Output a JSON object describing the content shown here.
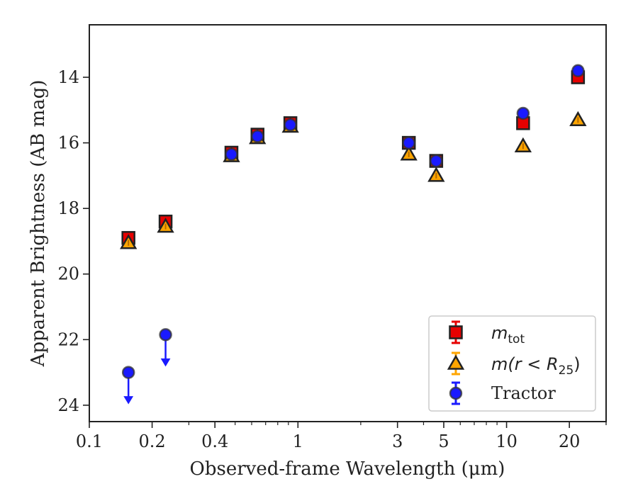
{
  "chart_data": {
    "type": "scatter",
    "xlabel": "Observed-frame Wavelength (μm)",
    "ylabel": "Apparent Brightness (AB mag)",
    "xscale": "log",
    "xlim": [
      0.1,
      30
    ],
    "ylim": [
      24.5,
      12.4
    ],
    "y_inverted": true,
    "grid": false,
    "legend_position": "lower-right",
    "xticks": [
      0.1,
      0.2,
      0.4,
      1,
      3,
      5,
      10,
      20
    ],
    "xtick_labels": [
      "0.1",
      "0.2",
      "0.4",
      "1",
      "3",
      "5",
      "10",
      "20"
    ],
    "yticks": [
      14,
      16,
      18,
      20,
      22,
      24
    ],
    "ytick_labels": [
      "14",
      "16",
      "18",
      "20",
      "22",
      "24"
    ],
    "series": [
      {
        "name": "m_tot",
        "marker": "square",
        "color": "#e60000",
        "points": [
          {
            "x": 0.154,
            "y": 18.9
          },
          {
            "x": 0.232,
            "y": 18.4
          },
          {
            "x": 0.48,
            "y": 16.3
          },
          {
            "x": 0.64,
            "y": 15.75
          },
          {
            "x": 0.92,
            "y": 15.4
          },
          {
            "x": 3.4,
            "y": 16.0
          },
          {
            "x": 4.6,
            "y": 16.55
          },
          {
            "x": 12.0,
            "y": 15.4
          },
          {
            "x": 22.0,
            "y": 14.0
          }
        ]
      },
      {
        "name": "m(r<R25)",
        "marker": "triangle",
        "color": "#ffa500",
        "points": [
          {
            "x": 0.154,
            "y": 19.05
          },
          {
            "x": 0.232,
            "y": 18.55
          },
          {
            "x": 0.48,
            "y": 16.4
          },
          {
            "x": 0.64,
            "y": 15.85
          },
          {
            "x": 0.92,
            "y": 15.5
          },
          {
            "x": 3.4,
            "y": 16.35
          },
          {
            "x": 4.6,
            "y": 17.0
          },
          {
            "x": 12.0,
            "y": 16.1
          },
          {
            "x": 22.0,
            "y": 15.3
          }
        ]
      },
      {
        "name": "Tractor",
        "marker": "circle",
        "color": "#1a1aff",
        "points": [
          {
            "x": 0.154,
            "y": 23.0,
            "upper_limit": true
          },
          {
            "x": 0.232,
            "y": 21.85,
            "upper_limit": true
          },
          {
            "x": 0.48,
            "y": 16.35
          },
          {
            "x": 0.64,
            "y": 15.8
          },
          {
            "x": 0.92,
            "y": 15.45
          },
          {
            "x": 3.4,
            "y": 16.0
          },
          {
            "x": 4.6,
            "y": 16.55
          },
          {
            "x": 12.0,
            "y": 15.1
          },
          {
            "x": 22.0,
            "y": 13.8
          }
        ]
      }
    ]
  },
  "legend": {
    "mtot_main": "m",
    "mtot_sub": "tot",
    "mr_main": "m(r < R",
    "mr_sub": "25",
    "mr_close": ")",
    "tractor": "Tractor"
  }
}
